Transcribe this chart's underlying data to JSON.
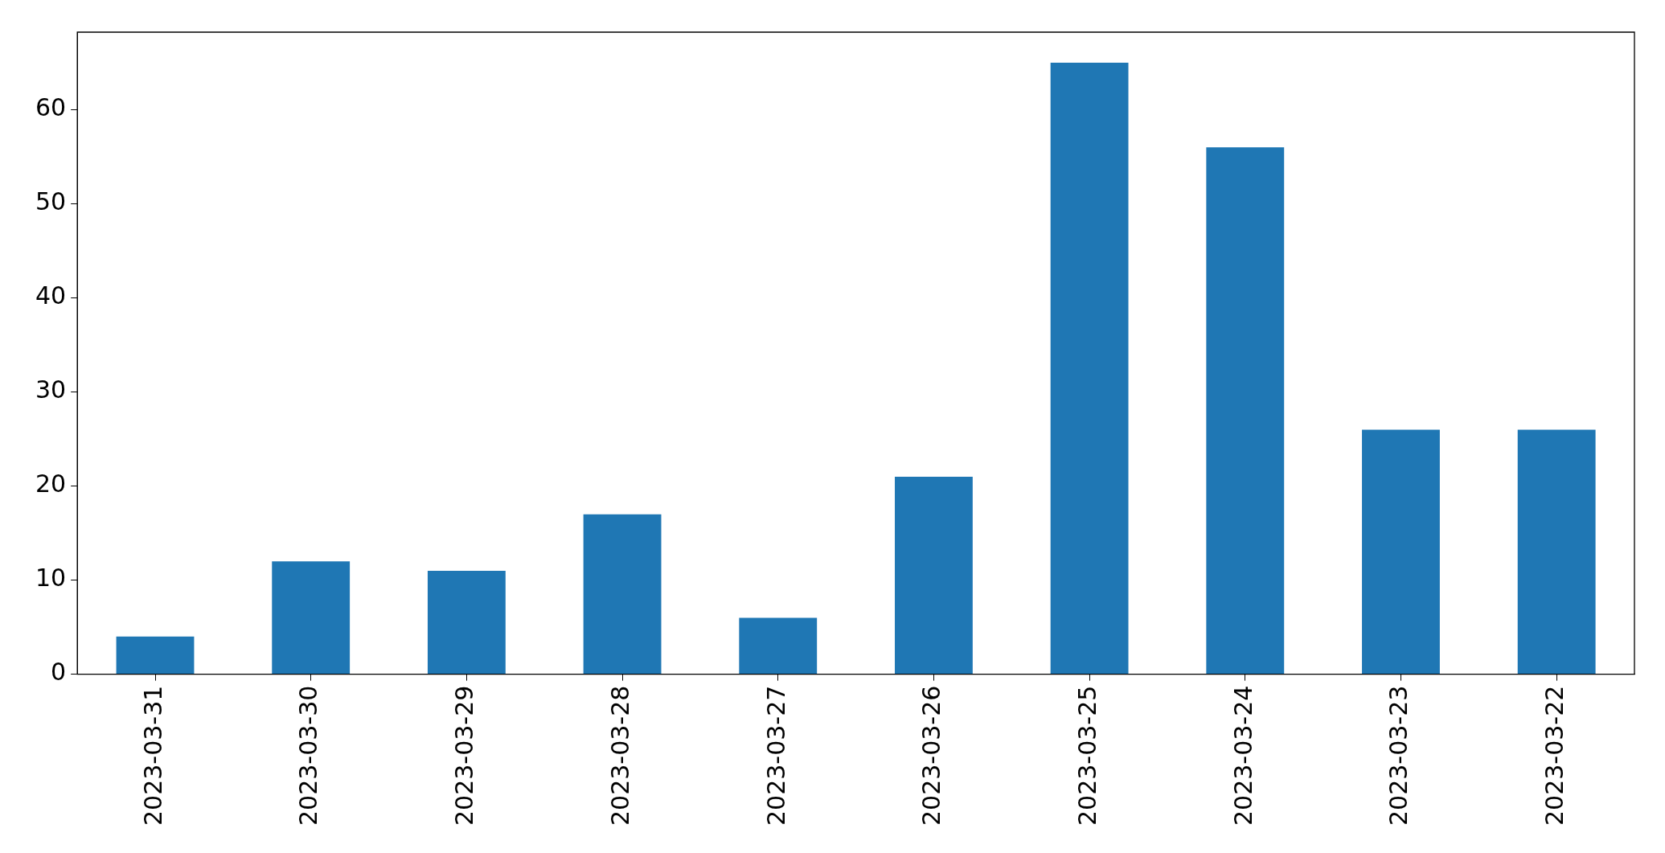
{
  "chart_data": {
    "type": "bar",
    "categories": [
      "2023-03-31",
      "2023-03-30",
      "2023-03-29",
      "2023-03-28",
      "2023-03-27",
      "2023-03-26",
      "2023-03-25",
      "2023-03-24",
      "2023-03-23",
      "2023-03-22"
    ],
    "values": [
      4,
      12,
      11,
      17,
      6,
      21,
      65,
      56,
      26,
      26
    ],
    "color": "#1f77b4",
    "ylim": [
      0,
      68.25
    ],
    "yticks": [
      0,
      10,
      20,
      30,
      40,
      50,
      60
    ],
    "grid": false,
    "legend": false
  }
}
